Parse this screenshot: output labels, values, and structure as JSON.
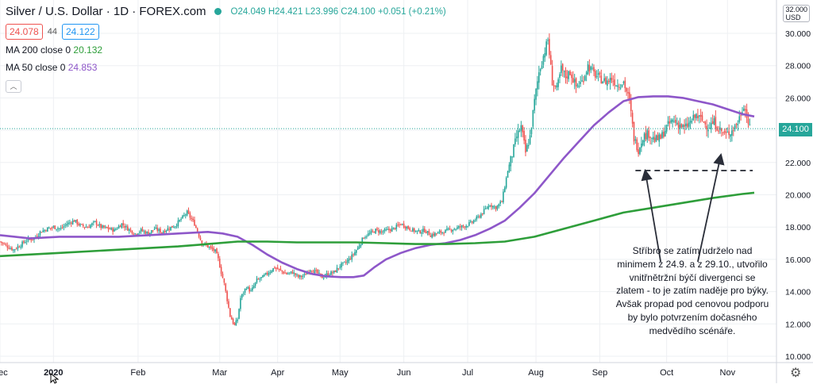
{
  "header": {
    "symbol": "Silver / U.S. Dollar · 1D · FOREX.com",
    "ohlc": "O24.049  H24.421  L23.996  C24.100  +0.051 (+0.21%)",
    "bid": "24.078",
    "spread": "44",
    "ask": "24.122",
    "ma200_label": "MA 200 close 0",
    "ma200_value": "20.132",
    "ma50_label": "MA 50 close 0",
    "ma50_value": "24.853",
    "collapse_icon": "chevron-up-icon"
  },
  "price_axis": {
    "currency_top": "32.000",
    "currency": "USD",
    "last_price": "24.100"
  },
  "annotation": {
    "text_lines": [
      "Stříbro se zatím udrželo nad",
      "minimem z 24.9. a z 29.10., utvořilo",
      "vnitřnětržní býčí divergenci se",
      "zlatem - to je zatím naděje pro býky.",
      "Avšak propad pod cenovou podporu",
      "by bylo potvrzením dočasného",
      "medvědího scénáře."
    ]
  },
  "icons": {
    "settings": "gear-icon",
    "cursor": "mouse-cursor-icon"
  },
  "colors": {
    "up": "#26a69a",
    "down": "#ef5350",
    "ma50": "#8e57c9",
    "ma200": "#2e9e3a",
    "grid": "#eef0f3",
    "last_price_line": "#26a69a"
  },
  "chart_data": {
    "type": "candlestick",
    "title": "Silver / U.S. Dollar · 1D · FOREX.com",
    "ylim": [
      10,
      32
    ],
    "y_ticks": [
      "10.000",
      "12.000",
      "14.000",
      "16.000",
      "18.000",
      "20.000",
      "22.000",
      "24.000",
      "26.000",
      "28.000",
      "30.000"
    ],
    "x_ticks": [
      "Dec",
      "2020",
      "Feb",
      "Mar",
      "Apr",
      "May",
      "Jun",
      "Jul",
      "Aug",
      "Sep",
      "Oct",
      "Nov"
    ],
    "x_tick_days": [
      0,
      36,
      93,
      148,
      187,
      229,
      272,
      315,
      361,
      404,
      449,
      490
    ],
    "grid": true,
    "close_series": [
      [
        0,
        17.1
      ],
      [
        5,
        16.8
      ],
      [
        9,
        16.6
      ],
      [
        14,
        16.9
      ],
      [
        18,
        17.2
      ],
      [
        23,
        17.3
      ],
      [
        27,
        17.7
      ],
      [
        32,
        17.9
      ],
      [
        36,
        18.0
      ],
      [
        41,
        17.9
      ],
      [
        45,
        18.2
      ],
      [
        50,
        18.4
      ],
      [
        54,
        18.1
      ],
      [
        59,
        18.0
      ],
      [
        64,
        18.3
      ],
      [
        68,
        18.0
      ],
      [
        73,
        17.9
      ],
      [
        77,
        17.8
      ],
      [
        82,
        18.2
      ],
      [
        86,
        17.9
      ],
      [
        91,
        17.6
      ],
      [
        95,
        17.8
      ],
      [
        100,
        17.6
      ],
      [
        104,
        17.9
      ],
      [
        109,
        17.7
      ],
      [
        113,
        17.9
      ],
      [
        118,
        18.1
      ],
      [
        122,
        18.5
      ],
      [
        126,
        18.9
      ],
      [
        131,
        18.2
      ],
      [
        136,
        17.0
      ],
      [
        140,
        16.8
      ],
      [
        145,
        16.5
      ],
      [
        147,
        16.0
      ],
      [
        149,
        15.2
      ],
      [
        151,
        14.5
      ],
      [
        153,
        13.5
      ],
      [
        155,
        12.5
      ],
      [
        158,
        11.9
      ],
      [
        160,
        12.3
      ],
      [
        162,
        13.6
      ],
      [
        166,
        14.3
      ],
      [
        169,
        14.0
      ],
      [
        173,
        14.7
      ],
      [
        177,
        14.9
      ],
      [
        181,
        15.2
      ],
      [
        185,
        15.5
      ],
      [
        189,
        15.3
      ],
      [
        193,
        15.1
      ],
      [
        197,
        15.2
      ],
      [
        201,
        14.9
      ],
      [
        205,
        15.0
      ],
      [
        209,
        15.4
      ],
      [
        213,
        15.2
      ],
      [
        217,
        14.9
      ],
      [
        221,
        15.1
      ],
      [
        225,
        15.2
      ],
      [
        229,
        15.6
      ],
      [
        233,
        15.8
      ],
      [
        237,
        16.2
      ],
      [
        241,
        16.7
      ],
      [
        245,
        17.4
      ],
      [
        249,
        17.6
      ],
      [
        253,
        17.8
      ],
      [
        257,
        17.7
      ],
      [
        261,
        17.8
      ],
      [
        265,
        17.9
      ],
      [
        270,
        18.2
      ],
      [
        274,
        18.0
      ],
      [
        278,
        17.8
      ],
      [
        282,
        17.7
      ],
      [
        286,
        17.8
      ],
      [
        290,
        17.5
      ],
      [
        294,
        17.6
      ],
      [
        298,
        17.7
      ],
      [
        302,
        17.8
      ],
      [
        306,
        17.9
      ],
      [
        310,
        18.0
      ],
      [
        314,
        18.1
      ],
      [
        318,
        18.3
      ],
      [
        322,
        18.6
      ],
      [
        326,
        19.0
      ],
      [
        330,
        19.4
      ],
      [
        334,
        19.2
      ],
      [
        338,
        19.6
      ],
      [
        342,
        21.5
      ],
      [
        345,
        22.5
      ],
      [
        348,
        23.6
      ],
      [
        351,
        24.2
      ],
      [
        354,
        22.6
      ],
      [
        357,
        23.6
      ],
      [
        360,
        25.8
      ],
      [
        363,
        27.6
      ],
      [
        366,
        28.6
      ],
      [
        369,
        29.6
      ],
      [
        372,
        27.0
      ],
      [
        375,
        26.5
      ],
      [
        378,
        27.8
      ],
      [
        381,
        27.3
      ],
      [
        384,
        27.6
      ],
      [
        388,
        26.7
      ],
      [
        392,
        27.0
      ],
      [
        396,
        28.0
      ],
      [
        400,
        27.5
      ],
      [
        404,
        27.2
      ],
      [
        408,
        27.0
      ],
      [
        412,
        27.2
      ],
      [
        416,
        26.8
      ],
      [
        420,
        27.0
      ],
      [
        424,
        25.8
      ],
      [
        427,
        23.5
      ],
      [
        430,
        22.8
      ],
      [
        433,
        23.6
      ],
      [
        437,
        23.8
      ],
      [
        441,
        23.4
      ],
      [
        445,
        23.5
      ],
      [
        449,
        24.2
      ],
      [
        453,
        24.6
      ],
      [
        457,
        24.4
      ],
      [
        461,
        24.1
      ],
      [
        465,
        24.5
      ],
      [
        469,
        24.9
      ],
      [
        473,
        24.6
      ],
      [
        477,
        24.2
      ],
      [
        481,
        24.5
      ],
      [
        485,
        24.0
      ],
      [
        489,
        23.7
      ],
      [
        493,
        24.0
      ],
      [
        497,
        24.5
      ],
      [
        501,
        25.6
      ],
      [
        505,
        24.1
      ]
    ],
    "series": [
      {
        "name": "MA 50 close 0",
        "color": "#8e57c9",
        "points": [
          [
            0,
            17.5
          ],
          [
            20,
            17.3
          ],
          [
            40,
            17.4
          ],
          [
            60,
            17.4
          ],
          [
            80,
            17.4
          ],
          [
            100,
            17.5
          ],
          [
            120,
            17.6
          ],
          [
            140,
            17.7
          ],
          [
            150,
            17.6
          ],
          [
            160,
            17.4
          ],
          [
            170,
            16.9
          ],
          [
            180,
            16.3
          ],
          [
            190,
            15.8
          ],
          [
            200,
            15.4
          ],
          [
            210,
            15.1
          ],
          [
            220,
            14.95
          ],
          [
            230,
            14.9
          ],
          [
            238,
            14.9
          ],
          [
            245,
            15.0
          ],
          [
            252,
            15.5
          ],
          [
            260,
            16.0
          ],
          [
            270,
            16.4
          ],
          [
            280,
            16.7
          ],
          [
            290,
            16.9
          ],
          [
            300,
            17.0
          ],
          [
            310,
            17.2
          ],
          [
            320,
            17.5
          ],
          [
            330,
            17.9
          ],
          [
            340,
            18.4
          ],
          [
            350,
            19.2
          ],
          [
            360,
            20.1
          ],
          [
            370,
            21.2
          ],
          [
            380,
            22.3
          ],
          [
            390,
            23.3
          ],
          [
            400,
            24.3
          ],
          [
            410,
            25.1
          ],
          [
            420,
            25.8
          ],
          [
            430,
            26.05
          ],
          [
            440,
            26.1
          ],
          [
            450,
            26.1
          ],
          [
            460,
            26.0
          ],
          [
            470,
            25.8
          ],
          [
            480,
            25.6
          ],
          [
            490,
            25.3
          ],
          [
            500,
            25.0
          ],
          [
            508,
            24.85
          ]
        ]
      },
      {
        "name": "MA 200 close 0",
        "color": "#2e9e3a",
        "points": [
          [
            0,
            16.2
          ],
          [
            40,
            16.4
          ],
          [
            80,
            16.6
          ],
          [
            120,
            16.8
          ],
          [
            140,
            16.95
          ],
          [
            160,
            17.1
          ],
          [
            180,
            17.1
          ],
          [
            200,
            17.05
          ],
          [
            220,
            17.05
          ],
          [
            240,
            17.05
          ],
          [
            260,
            17.0
          ],
          [
            280,
            16.95
          ],
          [
            300,
            16.95
          ],
          [
            320,
            17.0
          ],
          [
            340,
            17.1
          ],
          [
            360,
            17.4
          ],
          [
            380,
            17.9
          ],
          [
            400,
            18.4
          ],
          [
            420,
            18.9
          ],
          [
            440,
            19.2
          ],
          [
            460,
            19.5
          ],
          [
            480,
            19.8
          ],
          [
            500,
            20.05
          ],
          [
            508,
            20.13
          ]
        ]
      }
    ],
    "support_level": 21.5,
    "last_price": 24.1
  }
}
